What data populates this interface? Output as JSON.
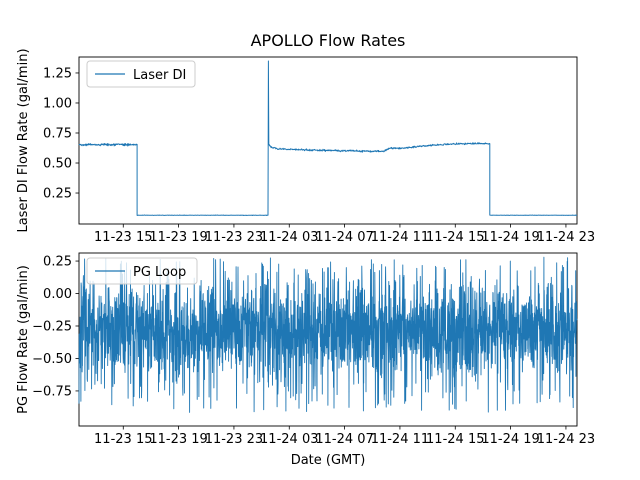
{
  "figure": {
    "title": "APOLLO Flow Rates",
    "xlabel": "Date (GMT)",
    "background": "#ffffff",
    "line_color": "#1f77b4",
    "axis_color": "#000000",
    "legend_border_color": "#cccccc"
  },
  "x_axis": {
    "tick_labels": [
      "11-23 15",
      "11-23 19",
      "11-23 23",
      "11-24 03",
      "11-24 07",
      "11-24 11",
      "11-24 15",
      "11-24 19",
      "11-24 23"
    ],
    "tick_hours": [
      3,
      7,
      11,
      15,
      19,
      23,
      27,
      31,
      35
    ],
    "xlim_hours": [
      -0.2,
      35.8
    ],
    "epoch": "11-23 12:00 GMT"
  },
  "top_plot": {
    "ylabel": "Laser DI Flow Rate (gal/min)",
    "legend_label": "Laser DI",
    "y_tick_values": [
      0.25,
      0.5,
      0.75,
      1.0,
      1.25
    ],
    "y_tick_labels": [
      "0.25",
      "0.50",
      "0.75",
      "1.00",
      "1.25"
    ],
    "ylim": [
      -0.008,
      1.383
    ]
  },
  "bottom_plot": {
    "ylabel": "PG Flow Rate (gal/min)",
    "legend_label": "PG Loop",
    "y_tick_values": [
      0.25,
      0.0,
      -0.25,
      -0.5,
      -0.75
    ],
    "y_tick_labels": [
      "0.25",
      "0.00",
      "−0.25",
      "−0.50",
      "−0.75"
    ],
    "ylim": [
      -1.02,
      0.312
    ]
  },
  "chart_data": [
    {
      "type": "line",
      "name": "Laser DI",
      "color": "#1f77b4",
      "title": "APOLLO Flow Rates",
      "ylabel": "Laser DI Flow Rate (gal/min)",
      "x_unit": "hours since 11-23 12:00 GMT",
      "ylim": [
        -0.008,
        1.383
      ],
      "segments": [
        {
          "t0": -0.2,
          "t1": 4.0,
          "level": 0.653,
          "noise": 0.009,
          "note": "steady flow ~0.65 gal/min until 11-23 16:00"
        },
        {
          "t0": 4.0,
          "t1": 13.46,
          "level": 0.065,
          "noise": 0.0015,
          "note": "flow off ~0.07 gal/min until 11-24 01:30"
        },
        {
          "t0": 13.46,
          "t1": 13.52,
          "spike_peak": 1.35,
          "note": "startup spike to ~1.35 gal/min at 11-24 01:30"
        },
        {
          "t0": 13.52,
          "t1": 29.5,
          "noise": 0.007,
          "profile": [
            [
              13.52,
              0.655
            ],
            [
              13.7,
              0.63
            ],
            [
              14.2,
              0.618
            ],
            [
              15.5,
              0.612
            ],
            [
              17.0,
              0.607
            ],
            [
              18.7,
              0.603
            ],
            [
              20.2,
              0.599
            ],
            [
              21.6,
              0.598
            ],
            [
              21.9,
              0.6
            ],
            [
              22.2,
              0.622
            ],
            [
              23.3,
              0.625
            ],
            [
              25.0,
              0.645
            ],
            [
              26.8,
              0.658
            ],
            [
              27.9,
              0.662
            ],
            [
              29.5,
              0.662
            ]
          ],
          "note": "flow ~0.60-0.66 gal/min, slowly rising, until 11-24 17:30"
        },
        {
          "t0": 29.5,
          "t1": 35.8,
          "level": 0.065,
          "noise": 0.0015,
          "note": "flow off ~0.07 gal/min to end of record"
        }
      ]
    },
    {
      "type": "line",
      "name": "PG Loop",
      "color": "#1f77b4",
      "ylabel": "PG Flow Rate (gal/min)",
      "xlabel": "Date (GMT)",
      "x_unit": "hours since 11-23 12:00 GMT",
      "ylim": [
        -1.02,
        0.312
      ],
      "band": {
        "core_top": 0.12,
        "core_bottom": -0.68,
        "peak_top": 0.28,
        "peak_bottom": -0.92,
        "mean": -0.28,
        "note": "continuous high-frequency oscillation between ~+0.25 and ~-0.9 gal/min over the whole record"
      }
    }
  ]
}
